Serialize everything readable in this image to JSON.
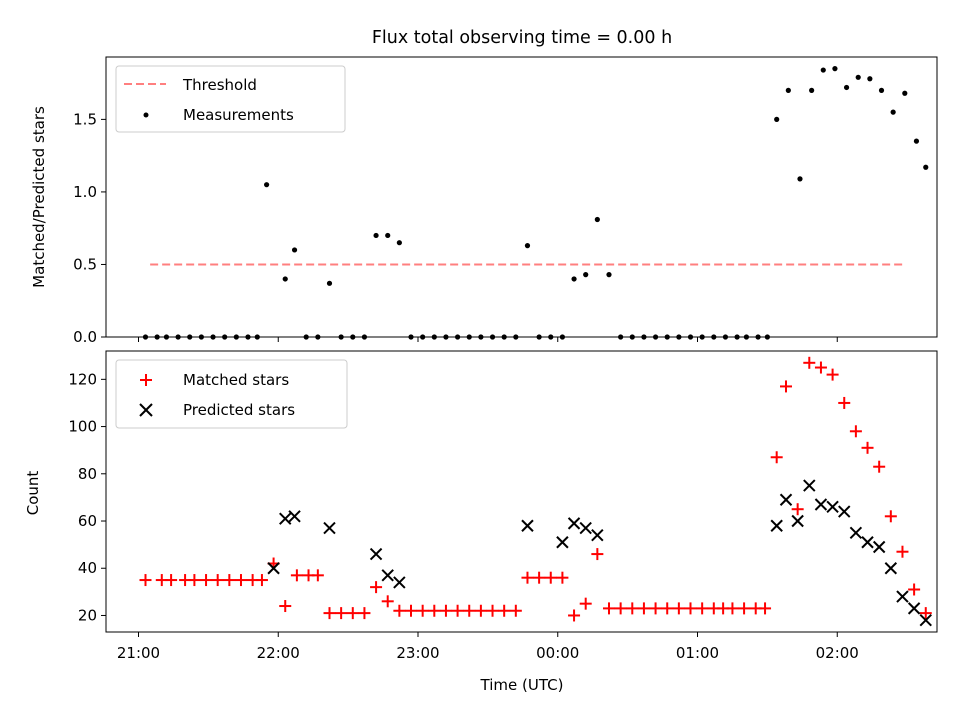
{
  "chart_data": [
    {
      "type": "line+scatter",
      "title": "Flux total observing time = 0.00 h",
      "ylabel": "Matched/Predicted stars",
      "xlabel": "",
      "ylim": [
        0,
        1.93
      ],
      "yticks": [
        0.0,
        0.5,
        1.0,
        1.5
      ],
      "ytick_labels": [
        "0.0",
        "0.5",
        "1.0",
        "1.5"
      ],
      "legend_position": "top-left",
      "threshold": {
        "name": "Threshold",
        "value": 0.5,
        "x_start": "21:05",
        "x_end": "02:28",
        "color": "#ff7f7f",
        "style": "dashed"
      },
      "measurements": {
        "name": "Measurements",
        "color": "#000000",
        "points": [
          {
            "x": "21:03",
            "y": 0.0
          },
          {
            "x": "21:08",
            "y": 0.0
          },
          {
            "x": "21:12",
            "y": 0.0
          },
          {
            "x": "21:17",
            "y": 0.0
          },
          {
            "x": "21:22",
            "y": 0.0
          },
          {
            "x": "21:27",
            "y": 0.0
          },
          {
            "x": "21:32",
            "y": 0.0
          },
          {
            "x": "21:37",
            "y": 0.0
          },
          {
            "x": "21:42",
            "y": 0.0
          },
          {
            "x": "21:47",
            "y": 0.0
          },
          {
            "x": "21:51",
            "y": 0.0
          },
          {
            "x": "21:55",
            "y": 1.05
          },
          {
            "x": "22:03",
            "y": 0.4
          },
          {
            "x": "22:07",
            "y": 0.6
          },
          {
            "x": "22:12",
            "y": 0.0
          },
          {
            "x": "22:17",
            "y": 0.0
          },
          {
            "x": "22:22",
            "y": 0.37
          },
          {
            "x": "22:27",
            "y": 0.0
          },
          {
            "x": "22:32",
            "y": 0.0
          },
          {
            "x": "22:37",
            "y": 0.0
          },
          {
            "x": "22:42",
            "y": 0.7
          },
          {
            "x": "22:47",
            "y": 0.7
          },
          {
            "x": "22:52",
            "y": 0.65
          },
          {
            "x": "22:57",
            "y": 0.0
          },
          {
            "x": "23:02",
            "y": 0.0
          },
          {
            "x": "23:07",
            "y": 0.0
          },
          {
            "x": "23:12",
            "y": 0.0
          },
          {
            "x": "23:17",
            "y": 0.0
          },
          {
            "x": "23:22",
            "y": 0.0
          },
          {
            "x": "23:27",
            "y": 0.0
          },
          {
            "x": "23:32",
            "y": 0.0
          },
          {
            "x": "23:37",
            "y": 0.0
          },
          {
            "x": "23:42",
            "y": 0.0
          },
          {
            "x": "23:47",
            "y": 0.63
          },
          {
            "x": "23:52",
            "y": 0.0
          },
          {
            "x": "23:57",
            "y": 0.0
          },
          {
            "x": "00:02",
            "y": 0.0
          },
          {
            "x": "00:07",
            "y": 0.4
          },
          {
            "x": "00:12",
            "y": 0.43
          },
          {
            "x": "00:17",
            "y": 0.81
          },
          {
            "x": "00:22",
            "y": 0.43
          },
          {
            "x": "00:27",
            "y": 0.0
          },
          {
            "x": "00:32",
            "y": 0.0
          },
          {
            "x": "00:37",
            "y": 0.0
          },
          {
            "x": "00:42",
            "y": 0.0
          },
          {
            "x": "00:47",
            "y": 0.0
          },
          {
            "x": "00:52",
            "y": 0.0
          },
          {
            "x": "00:57",
            "y": 0.0
          },
          {
            "x": "01:02",
            "y": 0.0
          },
          {
            "x": "01:07",
            "y": 0.0
          },
          {
            "x": "01:12",
            "y": 0.0
          },
          {
            "x": "01:17",
            "y": 0.0
          },
          {
            "x": "01:21",
            "y": 0.0
          },
          {
            "x": "01:26",
            "y": 0.0
          },
          {
            "x": "01:30",
            "y": 0.0
          },
          {
            "x": "01:34",
            "y": 1.5
          },
          {
            "x": "01:39",
            "y": 1.7
          },
          {
            "x": "01:44",
            "y": 1.09
          },
          {
            "x": "01:49",
            "y": 1.7
          },
          {
            "x": "01:54",
            "y": 1.84
          },
          {
            "x": "01:59",
            "y": 1.85
          },
          {
            "x": "02:04",
            "y": 1.72
          },
          {
            "x": "02:09",
            "y": 1.79
          },
          {
            "x": "02:14",
            "y": 1.78
          },
          {
            "x": "02:19",
            "y": 1.7
          },
          {
            "x": "02:24",
            "y": 1.55
          },
          {
            "x": "02:29",
            "y": 1.68
          },
          {
            "x": "02:34",
            "y": 1.35
          },
          {
            "x": "02:38",
            "y": 1.17
          }
        ]
      }
    },
    {
      "type": "scatter",
      "title": "",
      "ylabel": "Count",
      "xlabel": "Time (UTC)",
      "ylim": [
        13,
        132
      ],
      "yticks": [
        20,
        40,
        60,
        80,
        100,
        120
      ],
      "ytick_labels": [
        "20",
        "40",
        "60",
        "80",
        "100",
        "120"
      ],
      "xticks": [
        "21:00",
        "22:00",
        "23:00",
        "00:00",
        "01:00",
        "02:00"
      ],
      "xtick_labels": [
        "21:00",
        "22:00",
        "23:00",
        "00:00",
        "01:00",
        "02:00"
      ],
      "legend_position": "top-left",
      "series": [
        {
          "name": "Matched stars",
          "marker": "+",
          "color": "#ff0000",
          "points": [
            {
              "x": "21:03",
              "y": 35
            },
            {
              "x": "21:10",
              "y": 35
            },
            {
              "x": "21:14",
              "y": 35
            },
            {
              "x": "21:20",
              "y": 35
            },
            {
              "x": "21:24",
              "y": 35
            },
            {
              "x": "21:29",
              "y": 35
            },
            {
              "x": "21:34",
              "y": 35
            },
            {
              "x": "21:39",
              "y": 35
            },
            {
              "x": "21:44",
              "y": 35
            },
            {
              "x": "21:49",
              "y": 35
            },
            {
              "x": "21:53",
              "y": 35
            },
            {
              "x": "21:58",
              "y": 42
            },
            {
              "x": "22:03",
              "y": 24
            },
            {
              "x": "22:08",
              "y": 37
            },
            {
              "x": "22:13",
              "y": 37
            },
            {
              "x": "22:17",
              "y": 37
            },
            {
              "x": "22:22",
              "y": 21
            },
            {
              "x": "22:27",
              "y": 21
            },
            {
              "x": "22:32",
              "y": 21
            },
            {
              "x": "22:37",
              "y": 21
            },
            {
              "x": "22:42",
              "y": 32
            },
            {
              "x": "22:47",
              "y": 26
            },
            {
              "x": "22:52",
              "y": 22
            },
            {
              "x": "22:57",
              "y": 22
            },
            {
              "x": "23:02",
              "y": 22
            },
            {
              "x": "23:07",
              "y": 22
            },
            {
              "x": "23:12",
              "y": 22
            },
            {
              "x": "23:17",
              "y": 22
            },
            {
              "x": "23:22",
              "y": 22
            },
            {
              "x": "23:27",
              "y": 22
            },
            {
              "x": "23:32",
              "y": 22
            },
            {
              "x": "23:37",
              "y": 22
            },
            {
              "x": "23:42",
              "y": 22
            },
            {
              "x": "23:47",
              "y": 36
            },
            {
              "x": "23:52",
              "y": 36
            },
            {
              "x": "23:57",
              "y": 36
            },
            {
              "x": "00:02",
              "y": 36
            },
            {
              "x": "00:07",
              "y": 20
            },
            {
              "x": "00:12",
              "y": 25
            },
            {
              "x": "00:17",
              "y": 46
            },
            {
              "x": "00:22",
              "y": 23
            },
            {
              "x": "00:27",
              "y": 23
            },
            {
              "x": "00:32",
              "y": 23
            },
            {
              "x": "00:37",
              "y": 23
            },
            {
              "x": "00:42",
              "y": 23
            },
            {
              "x": "00:47",
              "y": 23
            },
            {
              "x": "00:52",
              "y": 23
            },
            {
              "x": "00:57",
              "y": 23
            },
            {
              "x": "01:02",
              "y": 23
            },
            {
              "x": "01:07",
              "y": 23
            },
            {
              "x": "01:11",
              "y": 23
            },
            {
              "x": "01:15",
              "y": 23
            },
            {
              "x": "01:20",
              "y": 23
            },
            {
              "x": "01:25",
              "y": 23
            },
            {
              "x": "01:29",
              "y": 23
            },
            {
              "x": "01:34",
              "y": 87
            },
            {
              "x": "01:38",
              "y": 117
            },
            {
              "x": "01:43",
              "y": 65
            },
            {
              "x": "01:48",
              "y": 127
            },
            {
              "x": "01:53",
              "y": 125
            },
            {
              "x": "01:58",
              "y": 122
            },
            {
              "x": "02:03",
              "y": 110
            },
            {
              "x": "02:08",
              "y": 98
            },
            {
              "x": "02:13",
              "y": 91
            },
            {
              "x": "02:18",
              "y": 83
            },
            {
              "x": "02:23",
              "y": 62
            },
            {
              "x": "02:28",
              "y": 47
            },
            {
              "x": "02:33",
              "y": 31
            },
            {
              "x": "02:38",
              "y": 21
            }
          ]
        },
        {
          "name": "Predicted stars",
          "marker": "x",
          "color": "#000000",
          "points": [
            {
              "x": "21:58",
              "y": 40
            },
            {
              "x": "22:03",
              "y": 61
            },
            {
              "x": "22:07",
              "y": 62
            },
            {
              "x": "22:22",
              "y": 57
            },
            {
              "x": "22:42",
              "y": 46
            },
            {
              "x": "22:47",
              "y": 37
            },
            {
              "x": "22:52",
              "y": 34
            },
            {
              "x": "23:47",
              "y": 58
            },
            {
              "x": "00:02",
              "y": 51
            },
            {
              "x": "00:07",
              "y": 59
            },
            {
              "x": "00:12",
              "y": 57
            },
            {
              "x": "00:17",
              "y": 54
            },
            {
              "x": "01:34",
              "y": 58
            },
            {
              "x": "01:38",
              "y": 69
            },
            {
              "x": "01:43",
              "y": 60
            },
            {
              "x": "01:48",
              "y": 75
            },
            {
              "x": "01:53",
              "y": 67
            },
            {
              "x": "01:58",
              "y": 66
            },
            {
              "x": "02:03",
              "y": 64
            },
            {
              "x": "02:08",
              "y": 55
            },
            {
              "x": "02:13",
              "y": 51
            },
            {
              "x": "02:18",
              "y": 49
            },
            {
              "x": "02:23",
              "y": 40
            },
            {
              "x": "02:28",
              "y": 28
            },
            {
              "x": "02:33",
              "y": 23
            },
            {
              "x": "02:38",
              "y": 18
            }
          ]
        }
      ]
    }
  ]
}
